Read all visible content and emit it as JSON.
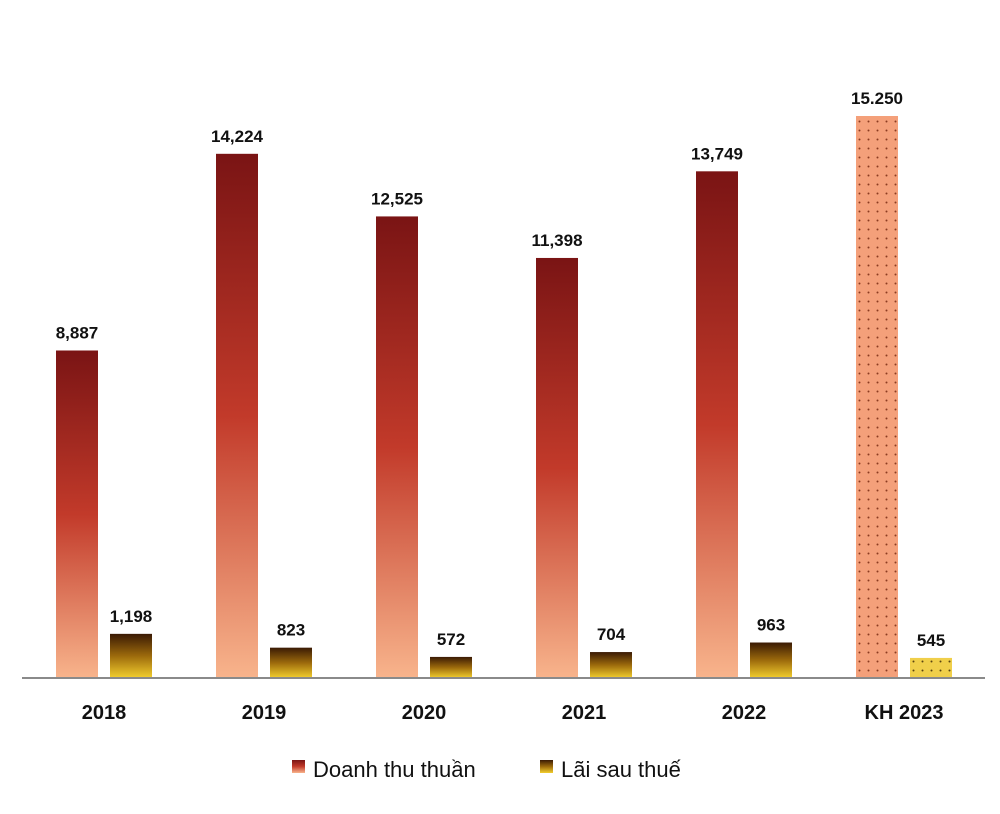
{
  "chart_data": {
    "type": "bar",
    "title": "",
    "xlabel": "",
    "ylabel": "",
    "ylim": [
      0,
      15250
    ],
    "grid": false,
    "legend_position": "bottom-center",
    "categories": [
      "2018",
      "2019",
      "2020",
      "2021",
      "2022",
      "KH 2023"
    ],
    "planned_category": "KH 2023",
    "series": [
      {
        "name": "Doanh thu thuần",
        "values": [
          8887,
          14224,
          12525,
          11398,
          13749,
          15250
        ],
        "labels": [
          "8,887",
          "14,224",
          "12,525",
          "11,398",
          "13,749",
          "15.250"
        ],
        "color_top": "#7a1414",
        "color_mid": "#c23a2a",
        "color_bottom": "#f8b48c",
        "planned_color": "#f4a07a"
      },
      {
        "name": "Lãi sau thuế",
        "values": [
          1198,
          823,
          572,
          704,
          963,
          545
        ],
        "labels": [
          "1,198",
          "823",
          "572",
          "704",
          "963",
          "545"
        ],
        "color_top": "#3a1a04",
        "color_mid": "#9c6a0c",
        "color_bottom": "#f3cf2e",
        "planned_color": "#f0cf4a"
      }
    ]
  }
}
